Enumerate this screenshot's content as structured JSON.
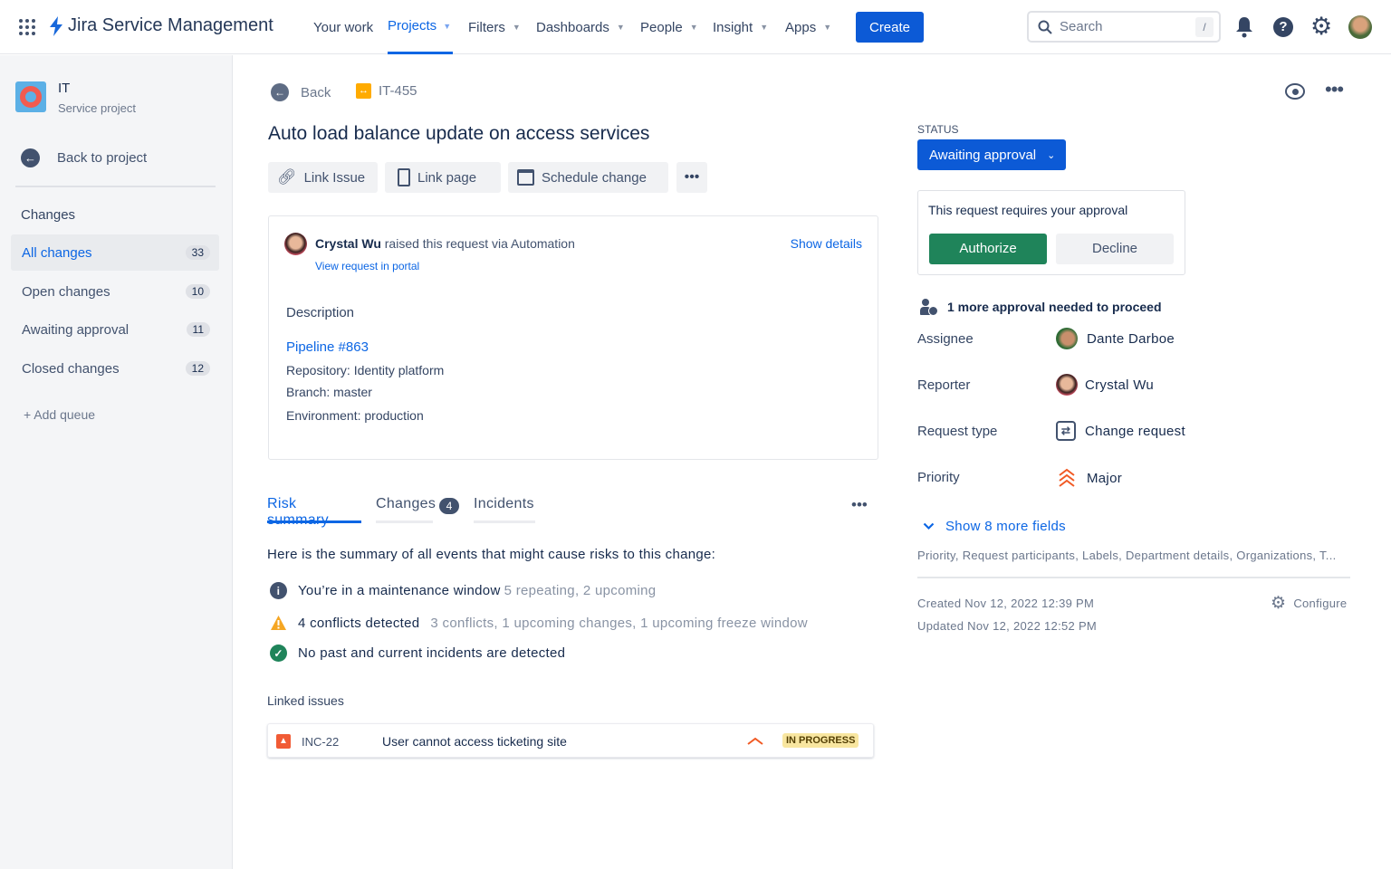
{
  "app": {
    "title": "Jira Service Management"
  },
  "nav": {
    "items": [
      {
        "label": "Your work"
      },
      {
        "label": "Projects"
      },
      {
        "label": "Filters"
      },
      {
        "label": "Dashboards"
      },
      {
        "label": "People"
      },
      {
        "label": "Insight"
      },
      {
        "label": "Apps"
      }
    ],
    "create": "Create",
    "search_placeholder": "Search",
    "search_shortcut": "/"
  },
  "sidebar": {
    "project_name": "IT",
    "project_type": "Service project",
    "back": "Back to project",
    "section": "Changes",
    "items": [
      {
        "label": "All changes",
        "count": "33"
      },
      {
        "label": "Open changes",
        "count": "10"
      },
      {
        "label": "Awaiting approval",
        "count": "11"
      },
      {
        "label": "Closed changes",
        "count": "12"
      }
    ],
    "add_queue": "+ Add queue"
  },
  "issue": {
    "back": "Back",
    "key": "IT-455",
    "title": "Auto load balance update on access services",
    "actions": {
      "link_issue": "Link Issue",
      "link_page": "Link page",
      "schedule": "Schedule change"
    },
    "raised_by": "Crystal Wu",
    "raised_text": "raised this request via Automation",
    "show_details": "Show details",
    "view_portal": "View request in portal",
    "description_label": "Description",
    "pipeline": "Pipeline #863",
    "repository": "Repository: Identity platform",
    "branch": "Branch: master",
    "environment": "Environment: production"
  },
  "tabs": [
    {
      "label": "Risk summary"
    },
    {
      "label": "Changes",
      "badge": "4"
    },
    {
      "label": "Incidents"
    }
  ],
  "risk": {
    "intro": "Here is the summary of all events that might cause risks to this change:",
    "items": [
      {
        "icon": "info-icon",
        "text": "You’re in a maintenance window",
        "sub": "5 repeating, 2 upcoming"
      },
      {
        "icon": "warning-icon",
        "text": "4 conflicts detected",
        "sub": "3 conflicts, 1 upcoming changes, 1 upcoming freeze window"
      },
      {
        "icon": "check-circle-icon",
        "text": "No past and current incidents are detected",
        "sub": ""
      }
    ]
  },
  "linked": {
    "title": "Linked issues",
    "rows": [
      {
        "key": "INC-22",
        "summary": "User cannot access ticketing site",
        "status": "IN PROGRESS"
      }
    ]
  },
  "panel": {
    "status_label": "STATUS",
    "status": "Awaiting approval",
    "approval_text": "This request requires your approval",
    "authorize": "Authorize",
    "decline": "Decline",
    "approvals_needed": "1 more approval needed to proceed",
    "fields": [
      {
        "label": "Assignee",
        "value": "Dante Darboe"
      },
      {
        "label": "Reporter",
        "value": "Crystal Wu"
      },
      {
        "label": "Request type",
        "value": "Change request"
      },
      {
        "label": "Priority",
        "value": "Major"
      }
    ],
    "show_more": "Show 8 more fields",
    "more_list": "Priority, Request participants, Labels, Department details, Organizations, T...",
    "created": "Created Nov 12, 2022 12:39 PM",
    "updated": "Updated Nov 12, 2022 12:52 PM",
    "configure": "Configure"
  },
  "colors": {
    "primary": "#0c66e4",
    "authorize": "#1f845a",
    "in_progress": "#f8e6a0",
    "priority": "#f15a24"
  }
}
